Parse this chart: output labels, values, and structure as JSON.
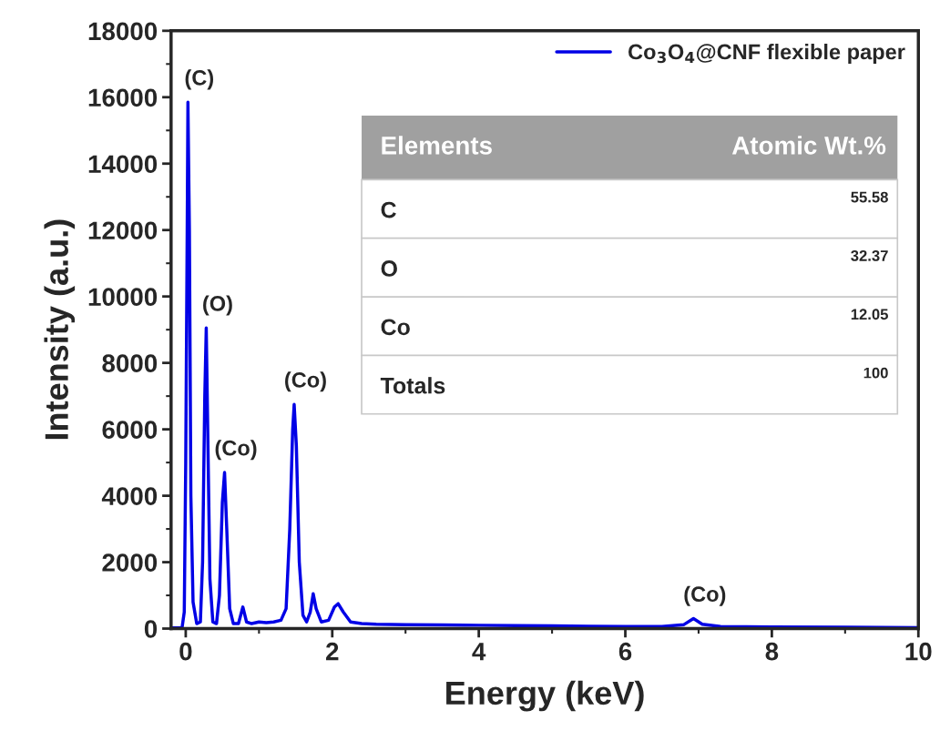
{
  "chart_data": {
    "type": "line",
    "xlabel": "Energy (keV)",
    "ylabel": "Intensity (a.u.)",
    "x": [
      -0.2,
      -0.05,
      -0.02,
      0.0,
      0.02,
      0.03,
      0.05,
      0.07,
      0.1,
      0.15,
      0.2,
      0.23,
      0.26,
      0.28,
      0.3,
      0.33,
      0.37,
      0.42,
      0.46,
      0.5,
      0.53,
      0.56,
      0.6,
      0.65,
      0.72,
      0.78,
      0.83,
      0.9,
      1.0,
      1.1,
      1.2,
      1.3,
      1.37,
      1.42,
      1.46,
      1.48,
      1.51,
      1.55,
      1.6,
      1.65,
      1.7,
      1.74,
      1.78,
      1.85,
      1.95,
      2.03,
      2.08,
      2.15,
      2.25,
      2.4,
      2.6,
      3.0,
      3.5,
      4.0,
      4.5,
      5.0,
      5.5,
      6.0,
      6.5,
      6.8,
      6.93,
      7.05,
      7.3,
      8.0,
      9.0,
      10.0
    ],
    "series": [
      {
        "name": "Co$_{3}$O$_{4}$@CNF flexible paper",
        "color": "#0000e6",
        "values": [
          20,
          30,
          500,
          5000,
          12000,
          15850,
          12000,
          4000,
          800,
          150,
          200,
          2000,
          7000,
          9050,
          6000,
          1500,
          200,
          150,
          1000,
          3800,
          4700,
          3000,
          600,
          150,
          150,
          650,
          200,
          150,
          200,
          180,
          200,
          250,
          600,
          3000,
          6000,
          6750,
          5500,
          2000,
          400,
          200,
          500,
          1050,
          600,
          200,
          250,
          650,
          750,
          500,
          200,
          150,
          130,
          120,
          110,
          100,
          90,
          80,
          70,
          60,
          60,
          120,
          300,
          130,
          60,
          50,
          40,
          30
        ]
      }
    ],
    "xlim": [
      -0.2,
      10
    ],
    "xticks": [
      0,
      2,
      4,
      6,
      8,
      10
    ],
    "ylim": [
      0,
      18000
    ],
    "yticks": [
      0,
      2000,
      4000,
      6000,
      8000,
      10000,
      12000,
      14000,
      16000,
      18000
    ],
    "legend": "top right",
    "annotations": [
      {
        "text": "(C)",
        "x": 0.03,
        "y": 15850
      },
      {
        "text": "(O)",
        "x": 0.28,
        "y": 9050
      },
      {
        "text": "(Co)",
        "x": 0.53,
        "y": 4700
      },
      {
        "text": "(Co)",
        "x": 1.48,
        "y": 6750
      },
      {
        "text": "(Co)",
        "x": 6.93,
        "y": 300
      },
      "Elements",
      "Atomic Wt.%",
      "C",
      "55.58",
      "O",
      "32.37",
      "Co",
      "12.05",
      "Totals",
      "100"
    ]
  }
}
